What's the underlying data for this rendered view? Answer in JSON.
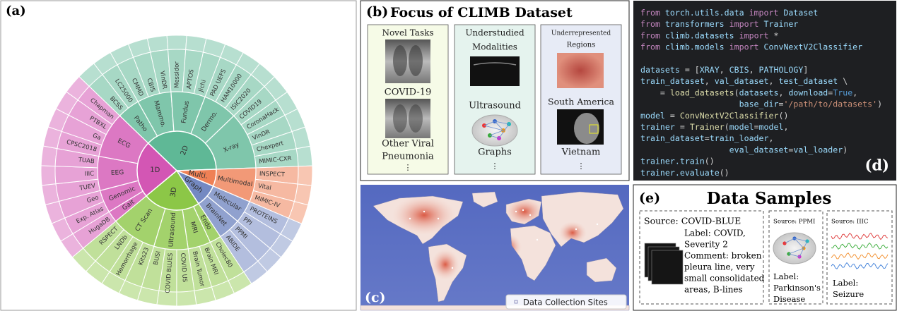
{
  "panel_a": {
    "label": "(a)",
    "groups": [
      {
        "name": "2D",
        "color": "#5fb896",
        "categories": [
          {
            "name": "Patho",
            "datasets": [
              "BCSS",
              "LC25000"
            ]
          },
          {
            "name": "Mammo.",
            "datasets": [
              "CMMD",
              "CBIS",
              "VinDR"
            ]
          },
          {
            "name": "Fundus",
            "datasets": [
              "Messidor",
              "APTOS",
              "Jichi"
            ]
          },
          {
            "name": "Dermo.",
            "datasets": [
              "PAD UEFS",
              "HAM10000",
              "ISIC2020"
            ]
          },
          {
            "name": "X-ray",
            "datasets": [
              "COVID19",
              "CoronaHack",
              "VinDR",
              "Chexpert",
              "MIMIC-CXR"
            ]
          }
        ]
      },
      {
        "name": "Multi.",
        "color": "#ef8055",
        "categories": [
          {
            "name": "Multimodal",
            "datasets": [
              "INSPECT",
              "Vital",
              "MIMIC-IV"
            ]
          }
        ]
      },
      {
        "name": "Graph",
        "color": "#7489c2",
        "categories": [
          {
            "name": "Molecular",
            "datasets": [
              "PROTEINS",
              "PPI"
            ]
          },
          {
            "name": "BrainNet",
            "datasets": [
              "PPMI",
              "ABIDE"
            ]
          }
        ]
      },
      {
        "name": "3D",
        "color": "#8cc747",
        "categories": [
          {
            "name": "Endo",
            "datasets": [
              "Cholec80"
            ]
          },
          {
            "name": "MRI",
            "datasets": [
              "Brain MRI",
              "Brain Tumor"
            ]
          },
          {
            "name": "Ultrasound",
            "datasets": [
              "COVID US",
              "COVID BLUES",
              "BUSI"
            ]
          },
          {
            "name": "CT Scan",
            "datasets": [
              "Kits23",
              "Hemorrhage",
              "LNDb",
              "RSPECT"
            ]
          }
        ]
      },
      {
        "name": "1D",
        "color": "#d356b4",
        "categories": [
          {
            "name": "Gait",
            "datasets": [
              "HugaDB"
            ]
          },
          {
            "name": "Genomic",
            "datasets": [
              "Exp. Atlas",
              "Geo"
            ]
          },
          {
            "name": "EEG",
            "datasets": [
              "TUEV",
              "IIIC",
              "TUAB"
            ]
          },
          {
            "name": "ECG",
            "datasets": [
              "CPSC2018",
              "Ga",
              "PTBXL",
              "Chapman"
            ]
          }
        ]
      }
    ]
  },
  "panel_b": {
    "label": "(b)",
    "title": "Focus of CLIMB Dataset",
    "columns": [
      {
        "lines": [
          "Novel Tasks",
          "COVID-19",
          "Other Viral",
          "Pneumonia",
          "⋮"
        ]
      },
      {
        "lines": [
          "Understudied",
          "Modalities",
          "Ultrasound",
          "Graphs",
          "⋮"
        ]
      },
      {
        "lines": [
          "Underrepresented",
          "Regions",
          "South America",
          "Vietnam",
          "⋮"
        ]
      }
    ]
  },
  "panel_c": {
    "label": "(c)",
    "legend": "Data Collection Sites"
  },
  "panel_d": {
    "label": "(d)",
    "imports": [
      "from torch.utils.data import Dataset",
      "from transformers import Trainer",
      "from climb.datasets import *",
      "from climb.models import ConvNextV2Classifier"
    ],
    "body": [
      "datasets = [XRAY, CBIS, PATHOLOGY]",
      "train_dataset, val_dataset, test_dataset \\",
      "    = load_datasets(datasets, download=True,",
      "                    base_dir='/path/to/datasets')",
      "model = ConvNextV2Classifier()",
      "trainer = Trainer(model=model,",
      "train_dataset=train_loader,",
      "                  eval_dataset=val_loader)",
      "trainer.train()",
      "trainer.evaluate()"
    ]
  },
  "panel_e": {
    "label": "(e)",
    "title": "Data Samples",
    "samples": [
      {
        "source": "Source: COVID-BLUE",
        "label": [
          "Label: COVID,",
          "Severity 2"
        ],
        "comment": [
          "Comment: broken",
          "pleura line, very",
          "small consolidated",
          "areas, B-lines"
        ]
      },
      {
        "source": "Source: PPMI",
        "label": [
          "Label:",
          "Parkinson's",
          "Disease"
        ]
      },
      {
        "source": "Source: IIIC",
        "label": [
          "Label:",
          "Seizure"
        ]
      }
    ]
  }
}
